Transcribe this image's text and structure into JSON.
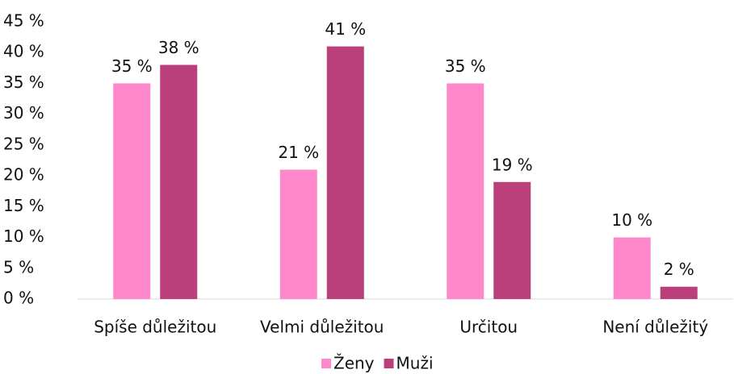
{
  "chart_data": {
    "type": "bar",
    "categories": [
      "Spíše důležitou",
      "Velmi důležitou",
      "Určitou",
      "Není důležitý"
    ],
    "series": [
      {
        "name": "Ženy",
        "color": "#ff88cc",
        "values": [
          35,
          21,
          35,
          10
        ],
        "value_labels": [
          "35 %",
          "21 %",
          "35 %",
          "10 %"
        ]
      },
      {
        "name": "Muži",
        "color": "#bb3f7a",
        "values": [
          38,
          41,
          19,
          2
        ],
        "value_labels": [
          "38 %",
          "41 %",
          "19 %",
          "2 %"
        ]
      }
    ],
    "ylim": [
      0,
      45
    ],
    "yticks": [
      {
        "value": 0,
        "label": "0 %"
      },
      {
        "value": 5,
        "label": "5 %"
      },
      {
        "value": 10,
        "label": "10 %"
      },
      {
        "value": 15,
        "label": "15 %"
      },
      {
        "value": 20,
        "label": "20 %"
      },
      {
        "value": 25,
        "label": "25 %"
      },
      {
        "value": 30,
        "label": "30 %"
      },
      {
        "value": 35,
        "label": "35 %"
      },
      {
        "value": 40,
        "label": "40 %"
      },
      {
        "value": 45,
        "label": "45 %"
      }
    ],
    "grid": false,
    "legend": "bottom"
  }
}
